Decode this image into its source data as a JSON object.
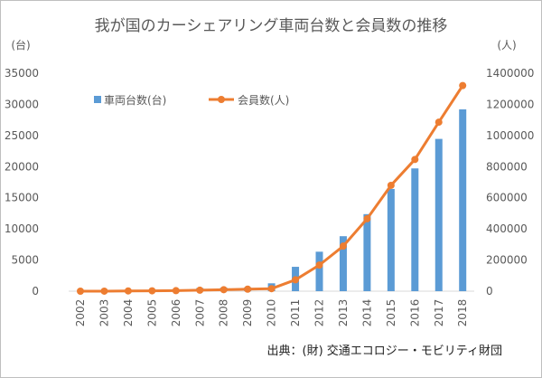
{
  "chart_data": {
    "type": "bar+line",
    "title": "我が国のカーシェアリング車両台数と会員数の推移",
    "left_unit": "(台)",
    "right_unit": "(人)",
    "source": "出典：(財) 交通エコロジー・モビリティ財団",
    "categories": [
      "2002",
      "2003",
      "2004",
      "2005",
      "2006",
      "2007",
      "2008",
      "2009",
      "2010",
      "2011",
      "2012",
      "2013",
      "2014",
      "2015",
      "2016",
      "2017",
      "2018"
    ],
    "series": [
      {
        "name": "車両台数(台)",
        "type": "bar",
        "axis": "left",
        "color": "#5b9bd5",
        "values": [
          21,
          40,
          86,
          118,
          312,
          510,
          563,
          612,
          1265,
          3915,
          6340,
          8831,
          12373,
          16418,
          19717,
          24458,
          29208
        ]
      },
      {
        "name": "会員数(人)",
        "type": "line",
        "axis": "right",
        "color": "#ed7d31",
        "values": [
          50,
          350,
          1712,
          2400,
          3520,
          6396,
          9600,
          13000,
          16177,
          73043,
          167745,
          289497,
          465280,
          680000,
          846240,
          1085922,
          1320794
        ]
      }
    ],
    "left_axis": {
      "range": [
        0,
        35000
      ],
      "ticks": [
        "0",
        "5000",
        "10000",
        "15000",
        "20000",
        "25000",
        "30000",
        "35000"
      ]
    },
    "right_axis": {
      "range": [
        0,
        1400000
      ],
      "ticks": [
        "0",
        "200000",
        "400000",
        "600000",
        "800000",
        "1000000",
        "1200000",
        "1400000"
      ]
    },
    "grid": false,
    "legend": "top-left"
  }
}
